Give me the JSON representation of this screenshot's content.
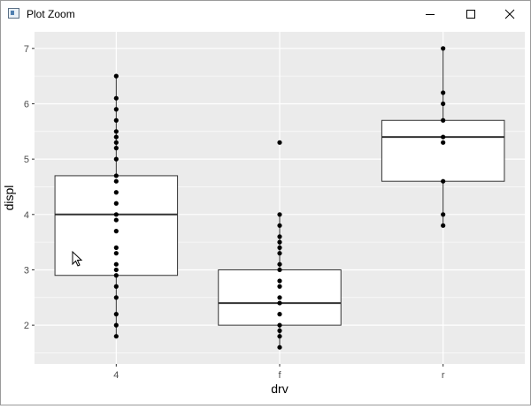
{
  "window": {
    "title": "Plot Zoom"
  },
  "chart_data": {
    "type": "boxplot",
    "xlabel": "drv",
    "ylabel": "displ",
    "categories": [
      "4",
      "f",
      "r"
    ],
    "yticks": [
      2,
      3,
      4,
      5,
      6,
      7
    ],
    "ylim": [
      1.3,
      7.3
    ],
    "grid": true,
    "boxes": [
      {
        "category": "4",
        "q1": 2.9,
        "median": 4.0,
        "q3": 4.7,
        "whisker_low": 1.8,
        "whisker_high": 6.5
      },
      {
        "category": "f",
        "q1": 2.0,
        "median": 2.4,
        "q3": 3.0,
        "whisker_low": 1.6,
        "whisker_high": 4.0
      },
      {
        "category": "r",
        "q1": 4.6,
        "median": 5.4,
        "q3": 5.7,
        "whisker_low": 3.8,
        "whisker_high": 7.0
      }
    ],
    "points": [
      {
        "category": "4",
        "values": [
          1.8,
          2.0,
          2.2,
          2.5,
          2.7,
          2.9,
          3.0,
          3.1,
          3.3,
          3.4,
          3.7,
          3.9,
          4.0,
          4.2,
          4.4,
          4.6,
          4.7,
          5.0,
          5.2,
          5.3,
          5.4,
          5.5,
          5.7,
          5.9,
          6.1,
          6.5
        ]
      },
      {
        "category": "f",
        "values": [
          1.6,
          1.8,
          1.9,
          2.0,
          2.2,
          2.4,
          2.5,
          2.7,
          2.8,
          3.0,
          3.1,
          3.3,
          3.4,
          3.5,
          3.6,
          3.8,
          4.0,
          5.3
        ]
      },
      {
        "category": "r",
        "values": [
          3.8,
          4.0,
          4.6,
          5.3,
          5.4,
          5.7,
          6.0,
          6.2,
          7.0
        ]
      }
    ]
  }
}
